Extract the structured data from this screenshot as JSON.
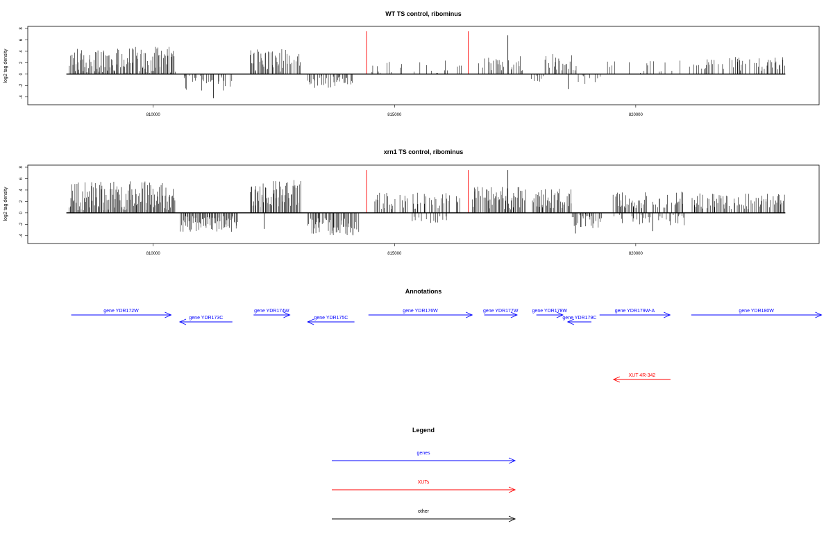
{
  "panels": [
    {
      "title": "WT TS control, ribominus",
      "ylabel": "log2 tag density",
      "xlim": [
        807400,
        823800
      ],
      "ylim": [
        -5,
        8
      ],
      "yticks": [
        -4,
        -2,
        0,
        2,
        4,
        6,
        8
      ],
      "xticks": [
        810000,
        815000,
        820000
      ],
      "xtick_labels": [
        "810000",
        "815000",
        "820000"
      ],
      "baseline": [
        808200,
        823100
      ],
      "red_markers": [
        {
          "x": 814420,
          "y": 7.5
        },
        {
          "x": 816530,
          "y": 7.5
        }
      ],
      "segments": [
        {
          "start": 808250,
          "end": 810450,
          "sign": 1,
          "mean": 2.4,
          "amp": 2.4,
          "density": 0.9
        },
        {
          "start": 810600,
          "end": 811700,
          "sign": -1,
          "mean": 1.4,
          "amp": 1.6,
          "density": 0.5
        },
        {
          "start": 812000,
          "end": 813050,
          "sign": 1,
          "mean": 2.4,
          "amp": 2.0,
          "density": 0.85
        },
        {
          "start": 813200,
          "end": 814150,
          "sign": -1,
          "mean": 1.3,
          "amp": 1.3,
          "density": 0.55
        },
        {
          "start": 814500,
          "end": 816400,
          "sign": 1,
          "mean": 1.3,
          "amp": 1.4,
          "density": 0.18
        },
        {
          "start": 816700,
          "end": 817700,
          "sign": 1,
          "mean": 2.0,
          "amp": 1.4,
          "density": 0.5
        },
        {
          "start": 817800,
          "end": 818100,
          "sign": -1,
          "mean": 0.8,
          "amp": 0.6,
          "density": 0.3
        },
        {
          "start": 818100,
          "end": 818750,
          "sign": 1,
          "mean": 2.0,
          "amp": 1.6,
          "density": 0.6
        },
        {
          "start": 818750,
          "end": 819300,
          "sign": -1,
          "mean": 1.3,
          "amp": 1.2,
          "density": 0.25
        },
        {
          "start": 819400,
          "end": 821300,
          "sign": 1,
          "mean": 1.2,
          "amp": 1.2,
          "density": 0.15
        },
        {
          "start": 821300,
          "end": 823100,
          "sign": 1,
          "mean": 1.8,
          "amp": 1.2,
          "density": 0.45
        }
      ],
      "spikes": [
        {
          "x": 817350,
          "y": 6.8
        },
        {
          "x": 818600,
          "y": -2.6
        },
        {
          "x": 811250,
          "y": -4.2
        }
      ]
    },
    {
      "title": "xrn1 TS control, ribominus",
      "ylabel": "log2 tag density",
      "xlim": [
        807400,
        823800
      ],
      "ylim": [
        -5,
        8
      ],
      "yticks": [
        -4,
        -2,
        0,
        2,
        4,
        6,
        8
      ],
      "xticks": [
        810000,
        815000,
        820000
      ],
      "xtick_labels": [
        "810000",
        "815000",
        "820000"
      ],
      "baseline": [
        808200,
        823100
      ],
      "red_markers": [
        {
          "x": 814420,
          "y": 7.5
        },
        {
          "x": 816530,
          "y": 7.5
        }
      ],
      "segments": [
        {
          "start": 808250,
          "end": 810450,
          "sign": 1,
          "mean": 3.0,
          "amp": 2.6,
          "density": 1.0
        },
        {
          "start": 810550,
          "end": 811750,
          "sign": -1,
          "mean": 1.9,
          "amp": 1.4,
          "density": 0.95
        },
        {
          "start": 812000,
          "end": 813050,
          "sign": 1,
          "mean": 3.4,
          "amp": 2.4,
          "density": 1.0
        },
        {
          "start": 813200,
          "end": 814250,
          "sign": -1,
          "mean": 2.4,
          "amp": 1.6,
          "density": 0.95
        },
        {
          "start": 814450,
          "end": 816350,
          "sign": 1,
          "mean": 2.0,
          "amp": 1.6,
          "density": 0.5
        },
        {
          "start": 815300,
          "end": 816300,
          "sign": -1,
          "mean": 1.0,
          "amp": 0.8,
          "density": 0.2
        },
        {
          "start": 816600,
          "end": 817700,
          "sign": 1,
          "mean": 2.6,
          "amp": 2.0,
          "density": 0.75
        },
        {
          "start": 817850,
          "end": 818700,
          "sign": 1,
          "mean": 2.6,
          "amp": 1.8,
          "density": 0.8
        },
        {
          "start": 818650,
          "end": 819300,
          "sign": -1,
          "mean": 1.4,
          "amp": 1.3,
          "density": 0.5
        },
        {
          "start": 819500,
          "end": 821000,
          "sign": 1,
          "mean": 2.2,
          "amp": 1.5,
          "density": 0.6
        },
        {
          "start": 819500,
          "end": 821100,
          "sign": -1,
          "mean": 1.0,
          "amp": 1.2,
          "density": 0.3
        },
        {
          "start": 821150,
          "end": 823100,
          "sign": 1,
          "mean": 2.0,
          "amp": 1.4,
          "density": 0.65
        }
      ],
      "spikes": [
        {
          "x": 817350,
          "y": 7.5
        },
        {
          "x": 812300,
          "y": -2.8
        },
        {
          "x": 818750,
          "y": -3.6
        },
        {
          "x": 820350,
          "y": -3.2
        }
      ]
    }
  ],
  "annotations": {
    "title": "Annotations",
    "xlim": [
      807400,
      823800
    ],
    "genes": [
      {
        "label": "gene YDR172W",
        "start": 808300,
        "end": 810370,
        "strand": "+",
        "row": 0
      },
      {
        "label": "gene YDR173C",
        "start": 810550,
        "end": 811640,
        "strand": "-",
        "row": 1
      },
      {
        "label": "gene YDR174W",
        "start": 812080,
        "end": 812830,
        "strand": "+",
        "row": 0
      },
      {
        "label": "gene YDR175C",
        "start": 813200,
        "end": 814170,
        "strand": "-",
        "row": 1
      },
      {
        "label": "gene YDR176W",
        "start": 814460,
        "end": 816610,
        "strand": "+",
        "row": 0
      },
      {
        "label": "gene YDR177W",
        "start": 816860,
        "end": 817540,
        "strand": "+",
        "row": 0
      },
      {
        "label": "gene YDR178W",
        "start": 817940,
        "end": 818490,
        "strand": "+",
        "row": 0
      },
      {
        "label": "gene YDR179C",
        "start": 818590,
        "end": 819080,
        "strand": "-",
        "row": 1
      },
      {
        "label": "gene YDR179W-A",
        "start": 819250,
        "end": 820710,
        "strand": "+",
        "row": 0
      },
      {
        "label": "gene YDR180W",
        "start": 821150,
        "end": 823850,
        "strand": "+",
        "row": 0
      }
    ],
    "xuts": [
      {
        "label": "XUT 4R-342",
        "start": 819540,
        "end": 820720,
        "strand": "-"
      }
    ]
  },
  "legend": {
    "title": "Legend",
    "items": [
      {
        "label": "genes",
        "color": "#0000ff"
      },
      {
        "label": "XUTs",
        "color": "#ff0000"
      },
      {
        "label": "other",
        "color": "#000000"
      }
    ]
  },
  "colors": {
    "gene": "#0000ff",
    "xut": "#ff0000",
    "trace": "#000000",
    "marker": "#ff0000"
  }
}
